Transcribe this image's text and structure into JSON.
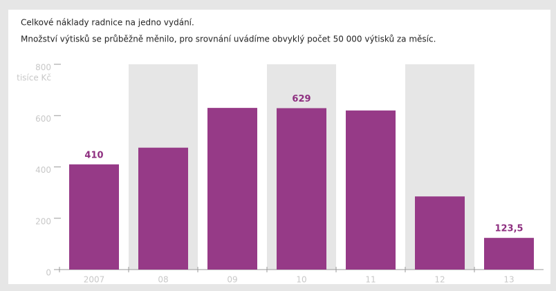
{
  "chart_data": {
    "type": "bar",
    "subtitle": [
      "Celkové náklady radnice na jedno vydání.",
      "Množství výtisků se průběžně měnilo, pro srovnání uvádíme obvyklý počet 50 000 výtisků za měsíc."
    ],
    "y_label": "tisíce Kč",
    "categories": [
      "2007",
      "08",
      "09",
      "10",
      "11",
      "12",
      "13"
    ],
    "values": [
      410,
      475,
      630,
      629,
      620,
      285,
      123.5
    ],
    "value_labels": [
      "410",
      null,
      null,
      "629",
      null,
      null,
      "123,5"
    ],
    "color": "#963a87",
    "ylim": [
      0,
      800
    ],
    "yticks": [
      0,
      200,
      400,
      600,
      800
    ]
  }
}
